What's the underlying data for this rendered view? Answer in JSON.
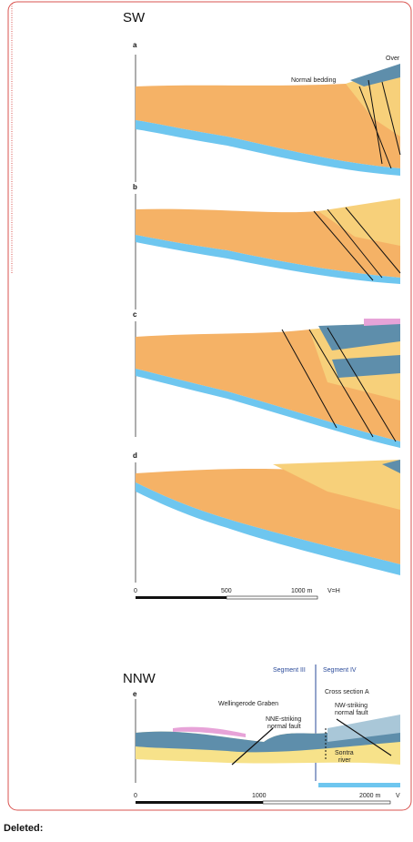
{
  "figure": {
    "upper_section": {
      "orientation": "SW",
      "panels": [
        {
          "label": "a",
          "annotations": [
            "Normal bedding",
            "Over"
          ]
        },
        {
          "label": "b"
        },
        {
          "label": "c"
        },
        {
          "label": "d"
        }
      ],
      "scale": {
        "labels": [
          "0",
          "500",
          "1000 m"
        ],
        "note": "V=H"
      }
    },
    "lower_section": {
      "orientation": "NNW",
      "panel_label": "e",
      "segments": [
        "Segment III",
        "Segment IV"
      ],
      "annotations": {
        "graben": "Wellingerode Graben",
        "nne_fault": [
          "NNE-striking",
          "normal fault"
        ],
        "cross_section": "Cross section A",
        "nw_fault": [
          "NW-striking",
          "normal fault"
        ],
        "river": [
          "Sontra",
          "river"
        ]
      },
      "scale": {
        "labels": [
          "0",
          "1000",
          "2000 m"
        ],
        "note": "V"
      }
    }
  },
  "footer": {
    "status": "Deleted:"
  }
}
